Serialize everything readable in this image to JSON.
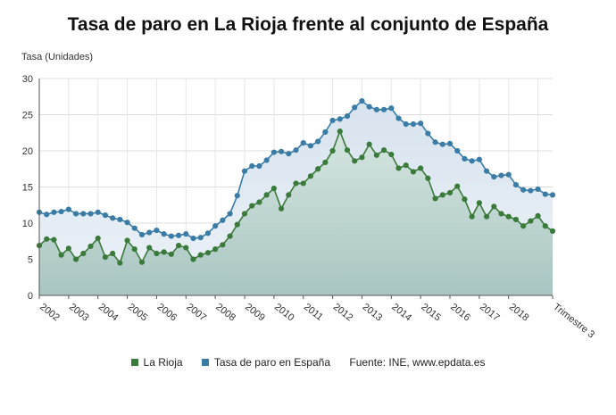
{
  "chart_data": {
    "type": "area",
    "title": "Tasa de paro en La Rioja frente al conjunto de España",
    "ylabel": "Tasa (Unidades)",
    "ylim": [
      0,
      30
    ],
    "yticks": [
      0,
      5,
      10,
      15,
      20,
      25,
      30
    ],
    "x_tick_labels": [
      "2002",
      "2003",
      "2004",
      "2005",
      "2006",
      "2007",
      "2008",
      "2009",
      "2010",
      "2011",
      "2012",
      "2013",
      "2014",
      "2015",
      "2016",
      "2017",
      "2018",
      "Trimestre 3"
    ],
    "grid": true,
    "legend_position": "bottom",
    "x": [
      "2002T1",
      "2002T2",
      "2002T3",
      "2002T4",
      "2003T1",
      "2003T2",
      "2003T3",
      "2003T4",
      "2004T1",
      "2004T2",
      "2004T3",
      "2004T4",
      "2005T1",
      "2005T2",
      "2005T3",
      "2005T4",
      "2006T1",
      "2006T2",
      "2006T3",
      "2006T4",
      "2007T1",
      "2007T2",
      "2007T3",
      "2007T4",
      "2008T1",
      "2008T2",
      "2008T3",
      "2008T4",
      "2009T1",
      "2009T2",
      "2009T3",
      "2009T4",
      "2010T1",
      "2010T2",
      "2010T3",
      "2010T4",
      "2011T1",
      "2011T2",
      "2011T3",
      "2011T4",
      "2012T1",
      "2012T2",
      "2012T3",
      "2012T4",
      "2013T1",
      "2013T2",
      "2013T3",
      "2013T4",
      "2014T1",
      "2014T2",
      "2014T3",
      "2014T4",
      "2015T1",
      "2015T2",
      "2015T3",
      "2015T4",
      "2016T1",
      "2016T2",
      "2016T3",
      "2016T4",
      "2017T1",
      "2017T2",
      "2017T3",
      "2017T4",
      "2018T1",
      "2018T2",
      "2018T3",
      "2018T4",
      "2019T1",
      "2019T2",
      "2019T3"
    ],
    "series": [
      {
        "name": "Tasa de paro en España",
        "color": "#3a7ca5",
        "values": [
          11.5,
          11.2,
          11.5,
          11.6,
          11.9,
          11.3,
          11.3,
          11.3,
          11.5,
          11.1,
          10.7,
          10.5,
          10.1,
          9.3,
          8.4,
          8.7,
          9.0,
          8.5,
          8.2,
          8.3,
          8.5,
          7.9,
          8.0,
          8.6,
          9.6,
          10.4,
          11.3,
          13.8,
          17.2,
          17.9,
          17.9,
          18.7,
          19.8,
          19.9,
          19.6,
          20.1,
          21.1,
          20.7,
          21.3,
          22.6,
          24.2,
          24.4,
          24.8,
          26.0,
          26.9,
          26.1,
          25.7,
          25.7,
          25.9,
          24.5,
          23.7,
          23.7,
          23.8,
          22.4,
          21.2,
          20.9,
          21.0,
          20.0,
          18.9,
          18.6,
          18.8,
          17.2,
          16.4,
          16.6,
          16.7,
          15.3,
          14.6,
          14.5,
          14.7,
          14.0,
          13.9
        ]
      },
      {
        "name": "La Rioja",
        "color": "#3a7a3a",
        "values": [
          6.9,
          7.8,
          7.7,
          5.6,
          6.5,
          5.0,
          5.8,
          6.8,
          7.9,
          5.3,
          5.8,
          4.5,
          7.6,
          6.4,
          4.6,
          6.6,
          5.8,
          6.0,
          5.7,
          6.9,
          6.6,
          5.0,
          5.6,
          5.9,
          6.4,
          7.0,
          8.2,
          9.8,
          11.3,
          12.4,
          12.9,
          13.9,
          14.8,
          12.0,
          13.9,
          15.5,
          15.5,
          16.5,
          17.5,
          18.4,
          20.0,
          22.7,
          20.1,
          18.6,
          19.1,
          20.9,
          19.4,
          20.1,
          19.5,
          17.6,
          18.0,
          17.1,
          17.6,
          16.2,
          13.4,
          13.9,
          14.2,
          15.1,
          13.3,
          10.9,
          12.8,
          10.9,
          12.3,
          11.3,
          10.9,
          10.5,
          9.6,
          10.3,
          11.0,
          9.6,
          8.9
        ]
      }
    ]
  },
  "legend": {
    "la_rioja": "La Rioja",
    "espana": "Tasa de paro en España",
    "source": "Fuente: INE, www.epdata.es"
  }
}
